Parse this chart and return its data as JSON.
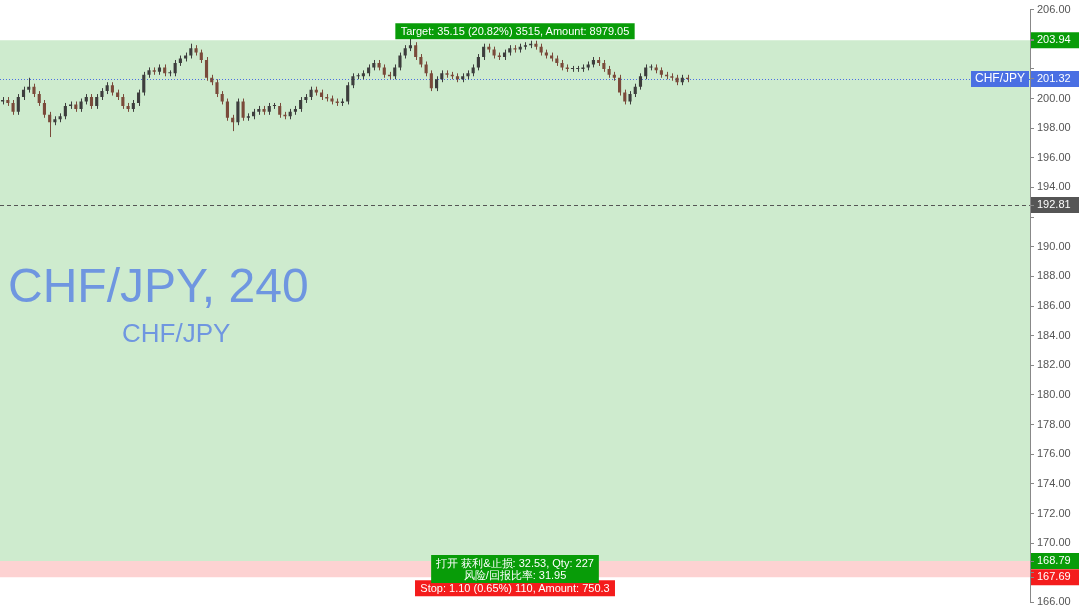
{
  "chart_data": {
    "type": "candlestick",
    "title": "CHF/JPY, 240",
    "subtitle": "CHF/JPY",
    "categories": [
      null,
      null,
      null,
      null,
      null,
      null,
      null,
      null,
      null,
      null,
      null,
      null,
      null,
      null,
      null,
      null,
      null,
      null,
      null,
      null,
      null,
      null,
      null,
      null,
      null,
      null,
      null,
      null,
      null,
      null,
      null,
      null,
      null,
      null,
      null,
      null,
      null,
      null,
      null,
      null,
      null,
      null,
      null,
      null,
      null,
      null,
      null,
      null,
      null,
      null,
      null,
      null,
      null,
      null,
      null,
      null,
      null,
      null,
      null,
      null,
      null,
      null,
      null,
      null,
      null,
      null,
      null,
      null,
      null,
      null,
      null,
      null,
      null,
      null,
      null,
      null,
      null,
      null,
      null,
      null,
      null,
      null,
      null,
      null,
      null,
      null,
      null,
      null,
      null,
      null,
      null,
      null,
      null,
      null,
      null,
      null,
      null,
      null,
      null,
      null,
      null,
      null,
      null,
      null,
      null,
      null,
      null,
      null,
      null,
      null,
      null,
      null,
      null,
      null,
      null,
      null,
      null,
      null,
      null,
      null,
      null,
      null,
      null,
      null,
      null,
      null,
      null,
      null,
      null,
      null,
      null,
      null,
      null,
      null,
      null,
      null,
      null,
      null,
      null,
      null,
      null,
      null,
      null,
      null,
      null,
      null,
      null,
      null,
      null,
      null,
      null,
      null,
      null,
      null,
      null,
      null,
      null,
      null,
      null,
      null,
      null,
      null,
      null,
      null,
      null,
      null,
      null,
      null,
      null,
      null,
      null,
      null,
      null,
      null,
      null,
      null,
      null,
      null,
      null,
      null,
      null,
      null,
      null,
      null,
      null,
      null,
      null,
      null,
      null,
      null,
      null,
      null,
      null,
      null,
      null,
      null,
      null
    ],
    "ohlc": [
      [
        199.8,
        200.1,
        199.6,
        199.9
      ],
      [
        199.9,
        200.1,
        199.5,
        199.7
      ],
      [
        199.7,
        199.9,
        198.9,
        199.1
      ],
      [
        199.1,
        200.3,
        198.9,
        200.1
      ],
      [
        200.1,
        200.8,
        199.9,
        200.6
      ],
      [
        200.6,
        201.4,
        200.4,
        200.8
      ],
      [
        200.8,
        201.0,
        200.1,
        200.3
      ],
      [
        200.3,
        200.5,
        199.5,
        199.7
      ],
      [
        199.7,
        199.9,
        198.7,
        198.9
      ],
      [
        198.9,
        199.1,
        197.4,
        198.4
      ],
      [
        198.4,
        198.8,
        198.2,
        198.6
      ],
      [
        198.6,
        199.0,
        198.4,
        198.8
      ],
      [
        198.8,
        199.7,
        198.6,
        199.5
      ],
      [
        199.5,
        199.8,
        199.3,
        199.6
      ],
      [
        199.6,
        199.8,
        199.1,
        199.3
      ],
      [
        199.3,
        200.0,
        199.1,
        199.8
      ],
      [
        199.8,
        200.3,
        199.6,
        200.1
      ],
      [
        200.1,
        200.3,
        199.3,
        199.5
      ],
      [
        199.5,
        200.3,
        199.3,
        200.1
      ],
      [
        200.1,
        200.7,
        199.9,
        200.5
      ],
      [
        200.5,
        201.1,
        200.3,
        200.9
      ],
      [
        200.9,
        201.1,
        200.2,
        200.4
      ],
      [
        200.4,
        200.6,
        199.9,
        200.1
      ],
      [
        200.1,
        200.3,
        199.3,
        199.5
      ],
      [
        199.5,
        199.7,
        199.1,
        199.3
      ],
      [
        199.3,
        199.9,
        199.1,
        199.7
      ],
      [
        199.7,
        200.6,
        199.5,
        200.4
      ],
      [
        200.4,
        201.8,
        200.2,
        201.6
      ],
      [
        201.6,
        202.1,
        201.4,
        201.9
      ],
      [
        201.9,
        202.1,
        201.6,
        201.8
      ],
      [
        201.8,
        202.3,
        201.6,
        202.1
      ],
      [
        202.1,
        202.3,
        201.5,
        201.7
      ],
      [
        201.7,
        201.9,
        201.5,
        201.7
      ],
      [
        201.7,
        202.6,
        201.5,
        202.4
      ],
      [
        202.4,
        202.9,
        202.2,
        202.7
      ],
      [
        202.7,
        203.1,
        202.5,
        202.9
      ],
      [
        202.9,
        203.7,
        202.7,
        203.4
      ],
      [
        203.4,
        203.6,
        202.9,
        203.1
      ],
      [
        203.1,
        203.3,
        202.4,
        202.6
      ],
      [
        202.6,
        202.8,
        201.2,
        201.4
      ],
      [
        201.4,
        201.6,
        200.9,
        201.1
      ],
      [
        201.1,
        201.3,
        200.1,
        200.3
      ],
      [
        200.3,
        200.5,
        199.6,
        199.8
      ],
      [
        199.8,
        200.0,
        198.5,
        198.7
      ],
      [
        198.7,
        198.9,
        197.8,
        198.4
      ],
      [
        198.4,
        200.0,
        198.2,
        199.8
      ],
      [
        199.8,
        200.0,
        198.5,
        198.7
      ],
      [
        198.7,
        199.0,
        198.5,
        198.8
      ],
      [
        198.8,
        199.3,
        198.6,
        199.1
      ],
      [
        199.1,
        199.5,
        198.9,
        199.3
      ],
      [
        199.3,
        199.5,
        198.9,
        199.1
      ],
      [
        199.1,
        199.7,
        198.9,
        199.5
      ],
      [
        199.5,
        199.7,
        199.3,
        199.5
      ],
      [
        199.5,
        199.7,
        198.7,
        198.9
      ],
      [
        198.9,
        199.1,
        198.6,
        198.8
      ],
      [
        198.8,
        199.3,
        198.6,
        199.1
      ],
      [
        199.1,
        199.5,
        198.9,
        199.3
      ],
      [
        199.3,
        200.1,
        199.1,
        199.9
      ],
      [
        199.9,
        200.3,
        199.7,
        200.1
      ],
      [
        200.1,
        200.8,
        199.9,
        200.6
      ],
      [
        200.6,
        200.8,
        200.2,
        200.4
      ],
      [
        200.4,
        200.6,
        199.9,
        200.1
      ],
      [
        200.1,
        200.3,
        199.8,
        200.0
      ],
      [
        200.0,
        200.2,
        199.6,
        199.8
      ],
      [
        199.8,
        200.0,
        199.5,
        199.7
      ],
      [
        199.7,
        200.0,
        199.5,
        199.8
      ],
      [
        199.8,
        201.1,
        199.6,
        200.9
      ],
      [
        200.9,
        201.7,
        200.7,
        201.5
      ],
      [
        201.5,
        201.7,
        201.3,
        201.5
      ],
      [
        201.5,
        201.9,
        201.3,
        201.7
      ],
      [
        201.7,
        202.3,
        201.5,
        202.1
      ],
      [
        202.1,
        202.6,
        201.9,
        202.4
      ],
      [
        202.4,
        202.6,
        201.9,
        202.1
      ],
      [
        202.1,
        202.3,
        201.4,
        201.6
      ],
      [
        201.6,
        201.8,
        201.3,
        201.5
      ],
      [
        201.5,
        202.3,
        201.3,
        202.1
      ],
      [
        202.1,
        203.1,
        201.9,
        202.9
      ],
      [
        202.9,
        203.6,
        202.7,
        203.4
      ],
      [
        203.4,
        204.1,
        203.2,
        203.6
      ],
      [
        203.6,
        203.8,
        202.6,
        202.8
      ],
      [
        202.8,
        203.0,
        202.1,
        202.3
      ],
      [
        202.3,
        202.5,
        201.5,
        201.7
      ],
      [
        201.7,
        201.9,
        200.5,
        200.7
      ],
      [
        200.7,
        201.5,
        200.5,
        201.3
      ],
      [
        201.3,
        201.9,
        201.1,
        201.7
      ],
      [
        201.7,
        201.9,
        201.4,
        201.6
      ],
      [
        201.6,
        201.8,
        201.3,
        201.5
      ],
      [
        201.5,
        201.7,
        201.1,
        201.3
      ],
      [
        201.3,
        201.7,
        201.1,
        201.5
      ],
      [
        201.5,
        201.9,
        201.3,
        201.7
      ],
      [
        201.7,
        202.3,
        201.5,
        202.1
      ],
      [
        202.1,
        203.0,
        201.9,
        202.8
      ],
      [
        202.8,
        203.7,
        202.6,
        203.5
      ],
      [
        203.5,
        203.7,
        203.1,
        203.3
      ],
      [
        203.3,
        203.5,
        202.7,
        202.9
      ],
      [
        202.9,
        203.1,
        202.6,
        202.8
      ],
      [
        202.8,
        203.3,
        202.6,
        203.1
      ],
      [
        203.1,
        203.6,
        202.9,
        203.4
      ],
      [
        203.4,
        203.6,
        203.1,
        203.3
      ],
      [
        203.3,
        203.7,
        203.1,
        203.5
      ],
      [
        203.5,
        203.8,
        203.3,
        203.6
      ],
      [
        203.6,
        203.9,
        203.4,
        203.7
      ],
      [
        203.7,
        203.9,
        203.3,
        203.5
      ],
      [
        203.5,
        203.7,
        202.9,
        203.1
      ],
      [
        203.1,
        203.3,
        202.7,
        202.9
      ],
      [
        202.9,
        203.1,
        202.5,
        202.7
      ],
      [
        202.7,
        202.9,
        202.2,
        202.4
      ],
      [
        202.4,
        202.6,
        201.9,
        202.1
      ],
      [
        202.1,
        202.3,
        201.8,
        202.0
      ],
      [
        202.0,
        202.2,
        201.8,
        202.0
      ],
      [
        202.0,
        202.2,
        201.8,
        202.0
      ],
      [
        202.0,
        202.3,
        201.8,
        202.1
      ],
      [
        202.1,
        202.5,
        201.9,
        202.3
      ],
      [
        202.3,
        202.8,
        202.1,
        202.6
      ],
      [
        202.6,
        202.8,
        202.2,
        202.4
      ],
      [
        202.4,
        202.6,
        201.8,
        202.0
      ],
      [
        202.0,
        202.2,
        201.4,
        201.6
      ],
      [
        201.6,
        201.8,
        201.2,
        201.4
      ],
      [
        201.4,
        201.6,
        200.2,
        200.4
      ],
      [
        200.4,
        200.6,
        199.6,
        199.8
      ],
      [
        199.8,
        200.5,
        199.6,
        200.3
      ],
      [
        200.3,
        201.0,
        200.1,
        200.8
      ],
      [
        200.8,
        201.7,
        200.6,
        201.5
      ],
      [
        201.5,
        202.3,
        201.3,
        202.1
      ],
      [
        202.1,
        202.3,
        201.9,
        202.1
      ],
      [
        202.1,
        202.3,
        201.7,
        201.9
      ],
      [
        201.9,
        202.1,
        201.4,
        201.6
      ],
      [
        201.6,
        201.8,
        201.3,
        201.5
      ],
      [
        201.5,
        201.7,
        201.2,
        201.4
      ],
      [
        201.4,
        201.6,
        200.9,
        201.1
      ],
      [
        201.1,
        201.6,
        200.9,
        201.4
      ],
      [
        201.4,
        201.6,
        201.1,
        201.32
      ],
      null,
      null,
      null,
      null,
      null,
      null,
      null,
      null,
      null,
      null,
      null,
      null,
      null,
      null,
      null,
      null,
      null,
      null,
      null,
      null,
      null,
      null,
      null,
      null,
      null,
      null,
      null,
      null,
      null,
      null,
      null,
      null,
      null,
      null,
      null,
      null,
      null,
      null,
      null,
      null,
      null,
      null,
      null,
      null,
      null,
      null,
      null,
      null,
      null,
      null,
      null,
      null,
      null,
      null,
      null,
      null,
      null,
      null,
      null,
      null,
      null,
      null,
      null,
      null,
      null
    ],
    "ylim": [
      166,
      206
    ],
    "yticks": [
      {
        "value": 166,
        "label": "166.00"
      },
      {
        "value": 167.69,
        "label": "167.69"
      },
      {
        "value": 168,
        "label": null
      },
      {
        "value": 168.79,
        "label": "168.79"
      },
      {
        "value": 170,
        "label": "170.00"
      },
      {
        "value": 172,
        "label": "172.00"
      },
      {
        "value": 174,
        "label": "174.00"
      },
      {
        "value": 176,
        "label": "176.00"
      },
      {
        "value": 178,
        "label": "178.00"
      },
      {
        "value": 180,
        "label": "180.00"
      },
      {
        "value": 182,
        "label": "182.00"
      },
      {
        "value": 184,
        "label": "184.00"
      },
      {
        "value": 186,
        "label": "186.00"
      },
      {
        "value": 188,
        "label": "188.00"
      },
      {
        "value": 190,
        "label": "190.00"
      },
      {
        "value": 192,
        "label": null
      },
      {
        "value": 192.81,
        "label": "192.81"
      },
      {
        "value": 194,
        "label": "194.00"
      },
      {
        "value": 196,
        "label": "196.00"
      },
      {
        "value": 198,
        "label": "198.00"
      },
      {
        "value": 200,
        "label": "200.00"
      },
      {
        "value": 201.32,
        "label": "201.32"
      },
      {
        "value": 202,
        "label": null
      },
      {
        "value": 203.94,
        "label": "203.94"
      },
      {
        "value": 204,
        "label": null
      },
      {
        "value": 206,
        "label": "206.00"
      }
    ],
    "ref_lines": [
      {
        "axis": "y",
        "value": 201.32,
        "label": "CHF/JPY",
        "color": "#4a6fe3",
        "line_style": "dotted"
      },
      {
        "axis": "y",
        "value": 192.81,
        "color": "#555555",
        "line_style": "dashed"
      }
    ],
    "bands": [
      {
        "axis": "y",
        "from": 168.79,
        "to": 203.94,
        "label": "Target: 35.15 (20.82%) 3515, Amount: 8979.05",
        "color": "#089c08"
      },
      {
        "axis": "y",
        "from": 167.69,
        "to": 168.79,
        "label": "Stop: 1.10 (0.65%) 110, Amount: 750.3",
        "color": "#f41c1c"
      }
    ],
    "annotations": [
      "打开 获利&止损: 32.53, Qty: 227\n风险/回报比率: 31.95"
    ],
    "grid": false,
    "legend": false
  }
}
